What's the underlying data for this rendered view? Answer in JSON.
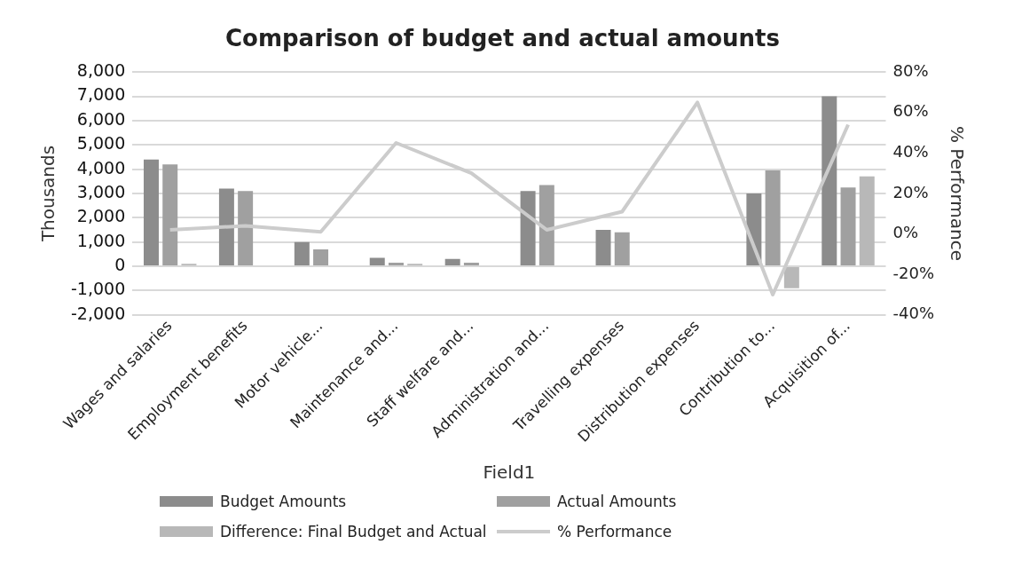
{
  "chart_data": {
    "type": "bar",
    "title": "Comparison of budget and actual amounts",
    "xlabel": "Field1",
    "ylabel": "Thousands",
    "y2label": "% Performance",
    "categories": [
      "Wages and salaries",
      "Employment benefits",
      "Motor vehicle...",
      "Maintenance and...",
      "Staff welfare and...",
      "Administration and...",
      "Travelling expenses",
      "Distribution expenses",
      "Contribution to...",
      "Acquisition of..."
    ],
    "series": [
      {
        "name": "Budget Amounts",
        "color": "#8c8c8c",
        "values": [
          4400,
          3200,
          1000,
          350,
          300,
          3100,
          1500,
          null,
          3000,
          7000
        ]
      },
      {
        "name": "Actual Amounts",
        "color": "#a0a0a0",
        "values": [
          4200,
          3100,
          700,
          150,
          150,
          3350,
          1400,
          0,
          3950,
          3250
        ]
      },
      {
        "name": "Difference: Final Budget and Actual",
        "color": "#b8b8b8",
        "values": [
          100,
          null,
          0,
          100,
          null,
          0,
          0,
          null,
          -900,
          3700
        ]
      },
      {
        "name": "% Performance",
        "type": "line",
        "axis": "y2",
        "color": "#cccccc",
        "values": [
          2,
          4,
          1,
          45,
          30,
          2,
          11,
          65,
          -30,
          54
        ]
      }
    ],
    "ylim": [
      -2000,
      8000
    ],
    "yticks": [
      {
        "value": -2000,
        "label": "-2,000"
      },
      {
        "value": -1000,
        "label": "-1,000"
      },
      0,
      {
        "value": 1000,
        "label": "1,000"
      },
      {
        "value": 2000,
        "label": "2,000"
      },
      {
        "value": 3000,
        "label": "3,000"
      },
      {
        "value": 4000,
        "label": "4,000"
      },
      {
        "value": 5000,
        "label": "5,000"
      },
      {
        "value": 6000,
        "label": "6,000"
      },
      {
        "value": 7000,
        "label": "7,000"
      },
      {
        "value": 8000,
        "label": "8,000"
      }
    ],
    "y2lim": [
      -40,
      80
    ],
    "y2ticks": [
      {
        "value": -40,
        "label": "-40%"
      },
      {
        "value": -20,
        "label": "-20%"
      },
      {
        "value": 0,
        "label": "0%"
      },
      {
        "value": 20,
        "label": "20%"
      },
      {
        "value": 40,
        "label": "40%"
      },
      {
        "value": 60,
        "label": "60%"
      },
      {
        "value": 80,
        "label": "80%"
      }
    ],
    "grid": "y",
    "legend": "bottom",
    "marker": "none"
  }
}
